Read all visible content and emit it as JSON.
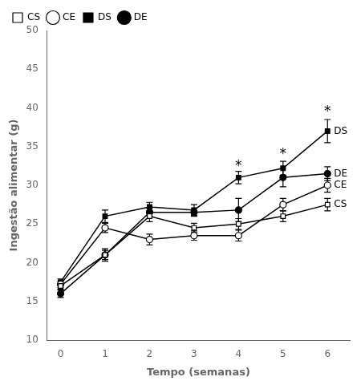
{
  "chart_data": {
    "type": "line",
    "x": [
      0,
      1,
      2,
      3,
      4,
      5,
      6
    ],
    "series": [
      {
        "name": "CS",
        "color": "#000000",
        "marker": "square-open",
        "values": [
          17.0,
          21.0,
          26.0,
          24.5,
          25.0,
          26.0,
          27.5
        ],
        "yerr": [
          0.4,
          0.8,
          0.7,
          0.6,
          0.7,
          0.7,
          0.8
        ]
      },
      {
        "name": "CE",
        "color": "#000000",
        "marker": "circle-open",
        "values": [
          17.2,
          24.5,
          23.0,
          23.5,
          23.5,
          27.5,
          30.0
        ],
        "yerr": [
          0.4,
          0.6,
          0.7,
          0.6,
          0.7,
          0.8,
          0.9
        ]
      },
      {
        "name": "DS",
        "color": "#000000",
        "marker": "square",
        "values": [
          17.5,
          26.0,
          27.2,
          26.8,
          31.0,
          32.2,
          37.0
        ],
        "yerr": [
          0.4,
          0.8,
          0.6,
          0.7,
          0.8,
          0.9,
          1.5
        ]
      },
      {
        "name": "DE",
        "color": "#000000",
        "marker": "circle",
        "values": [
          16.0,
          21.0,
          26.5,
          26.5,
          26.8,
          31.0,
          31.5
        ],
        "yerr": [
          0.5,
          0.6,
          0.5,
          0.5,
          1.5,
          1.2,
          0.9
        ]
      }
    ],
    "xlabel": "Tempo (semanas)",
    "ylabel": "Ingestão alimentar (g)",
    "xlim": [
      -0.3,
      6.5
    ],
    "ylim": [
      10,
      50
    ],
    "xticks": [
      0,
      1,
      2,
      3,
      4,
      5,
      6
    ],
    "yticks": [
      10,
      15,
      20,
      25,
      30,
      35,
      40,
      45,
      50
    ],
    "grid": false,
    "legend": "upper left",
    "annotations": [
      {
        "text": "*",
        "x": 4,
        "y": 32.0
      },
      {
        "text": "*",
        "x": 5,
        "y": 33.5
      },
      {
        "text": "*",
        "x": 6,
        "y": 39.0
      }
    ],
    "end_labels": [
      {
        "text": "DS",
        "y": 37.0
      },
      {
        "text": "DE",
        "y": 31.5
      },
      {
        "text": "CE",
        "y": 30.0
      },
      {
        "text": "CS",
        "y": 27.5
      }
    ]
  }
}
